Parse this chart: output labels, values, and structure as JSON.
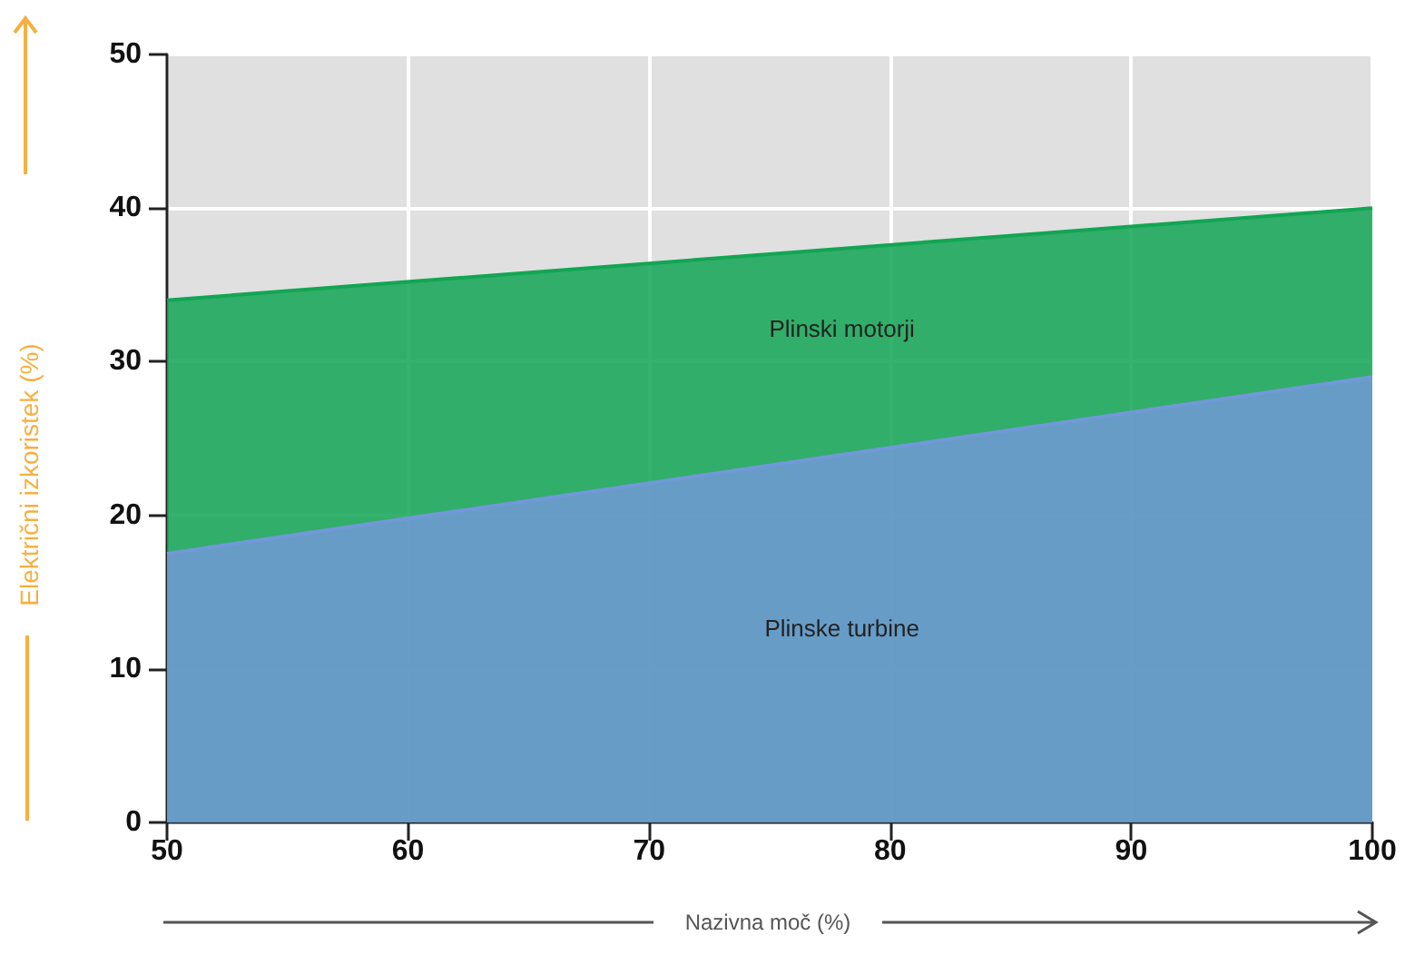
{
  "chart_data": {
    "type": "area",
    "xlabel": "Nazivna moč (%)",
    "ylabel": "Električni izkoristek (%)",
    "x": [
      50,
      100
    ],
    "series": [
      {
        "name": "Plinski motorji",
        "color": "#12a553",
        "values": [
          34,
          40
        ]
      },
      {
        "name": "Plinske turbine",
        "color": "#7199d8",
        "values": [
          17.5,
          29
        ]
      }
    ],
    "xlim": [
      50,
      100
    ],
    "xticks": [
      50,
      60,
      70,
      80,
      90,
      100
    ],
    "ylim": [
      0,
      50
    ],
    "yticks": [
      0,
      10,
      20,
      30,
      40,
      50
    ],
    "grid": true,
    "legend": false
  }
}
